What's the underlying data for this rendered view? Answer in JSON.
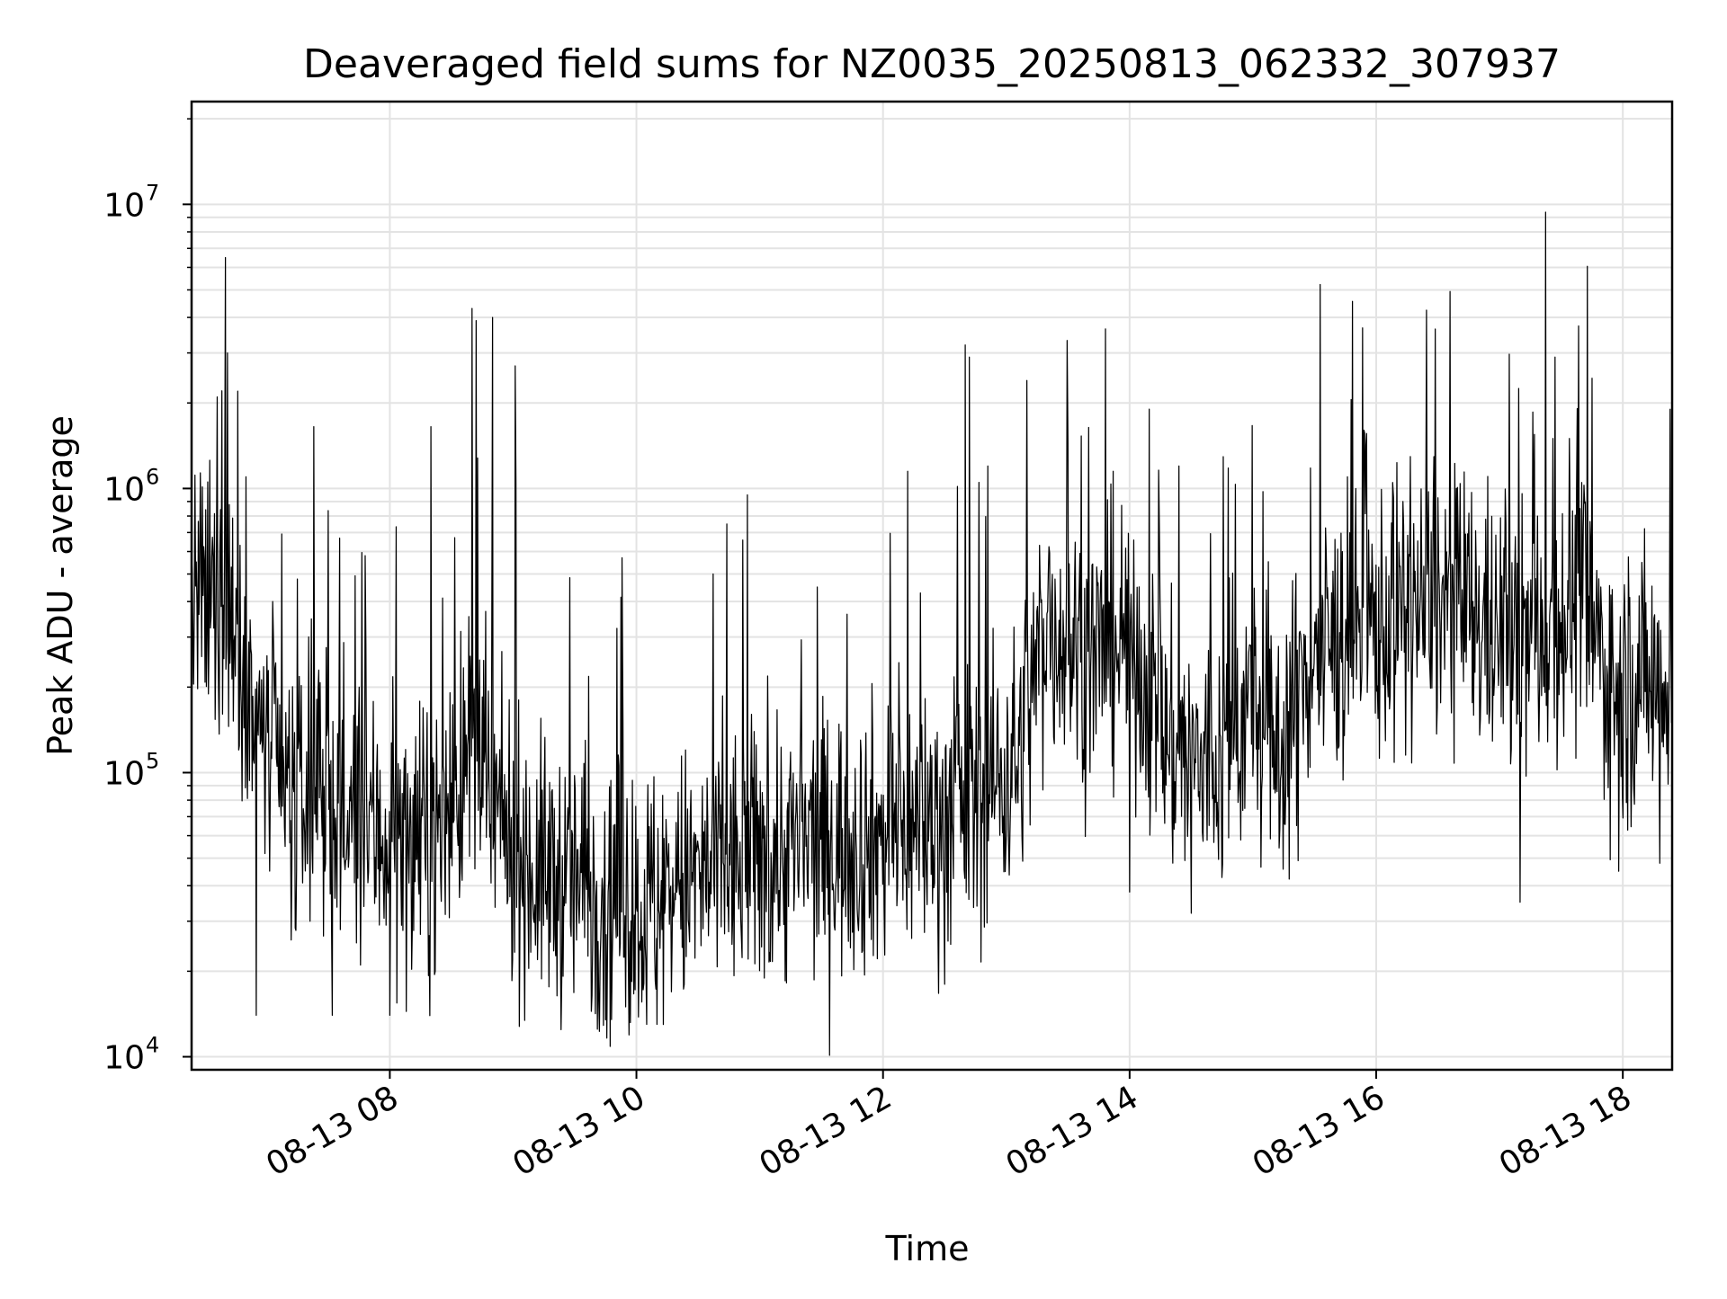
{
  "chart_data": {
    "type": "line",
    "title": "Deaveraged field sums for NZ0035_20250813_062332_307937",
    "xlabel": "Time",
    "ylabel": "Peak ADU - average",
    "x_axis": {
      "kind": "datetime",
      "min": "2025-08-13T06:23:32",
      "max": "2025-08-13T18:24:00",
      "ticks": [
        "2025-08-13T08:00",
        "2025-08-13T10:00",
        "2025-08-13T12:00",
        "2025-08-13T14:00",
        "2025-08-13T16:00",
        "2025-08-13T18:00"
      ],
      "tick_labels": [
        "08-13 08",
        "08-13 10",
        "08-13 12",
        "08-13 14",
        "08-13 16",
        "08-13 18"
      ],
      "tick_label_rotation_deg": 30
    },
    "y_axis": {
      "scale": "log",
      "ylim": [
        9000,
        23000000
      ],
      "ticks": [
        10000,
        100000,
        1000000,
        10000000
      ],
      "tick_labels": [
        {
          "base": "10",
          "exp": "4"
        },
        {
          "base": "10",
          "exp": "5"
        },
        {
          "base": "10",
          "exp": "6"
        },
        {
          "base": "10",
          "exp": "7"
        }
      ]
    },
    "grid": true,
    "legend": "none",
    "series": [
      {
        "color": "#000000",
        "x_start": "2025-08-13T06:23:32",
        "x_end": "2025-08-13T18:24:00",
        "level_profile": [
          [
            "2025-08-13T06:23:32",
            400000
          ],
          [
            "2025-08-13T06:45",
            350000
          ],
          [
            "2025-08-13T06:55",
            150000
          ],
          [
            "2025-08-13T07:10",
            80000
          ],
          [
            "2025-08-13T07:40",
            65000
          ],
          [
            "2025-08-13T08:20",
            55000
          ],
          [
            "2025-08-13T08:40",
            120000
          ],
          [
            "2025-08-13T08:50",
            70000
          ],
          [
            "2025-08-13T09:10",
            45000
          ],
          [
            "2025-08-13T10:00",
            35000
          ],
          [
            "2025-08-13T10:40",
            45000
          ],
          [
            "2025-08-13T11:20",
            55000
          ],
          [
            "2025-08-13T12:00",
            60000
          ],
          [
            "2025-08-13T12:40",
            75000
          ],
          [
            "2025-08-13T13:05",
            110000
          ],
          [
            "2025-08-13T13:20",
            350000
          ],
          [
            "2025-08-13T13:40",
            250000
          ],
          [
            "2025-08-13T14:00",
            300000
          ],
          [
            "2025-08-13T14:20",
            120000
          ],
          [
            "2025-08-13T14:40",
            100000
          ],
          [
            "2025-08-13T15:00",
            180000
          ],
          [
            "2025-08-13T15:10",
            110000
          ],
          [
            "2025-08-13T15:30",
            260000
          ],
          [
            "2025-08-13T16:00",
            330000
          ],
          [
            "2025-08-13T16:30",
            400000
          ],
          [
            "2025-08-13T17:10",
            280000
          ],
          [
            "2025-08-13T17:40",
            400000
          ],
          [
            "2025-08-13T17:55",
            200000
          ],
          [
            "2025-08-13T18:24",
            220000
          ]
        ],
        "spikes": [
          [
            "2025-08-13T06:40",
            6500000
          ],
          [
            "2025-08-13T06:41",
            3000000
          ],
          [
            "2025-08-13T06:36",
            2100000
          ],
          [
            "2025-08-13T06:46",
            2200000
          ],
          [
            "2025-08-13T06:50",
            1100000
          ],
          [
            "2025-08-13T07:03",
            400000
          ],
          [
            "2025-08-13T07:15",
            480000
          ],
          [
            "2025-08-13T07:23",
            1650000
          ],
          [
            "2025-08-13T07:48",
            580000
          ],
          [
            "2025-08-13T08:20",
            1650000
          ],
          [
            "2025-08-13T08:40",
            4300000
          ],
          [
            "2025-08-13T08:42",
            3900000
          ],
          [
            "2025-08-13T08:50",
            4000000
          ],
          [
            "2025-08-13T09:01",
            2700000
          ],
          [
            "2025-08-13T09:53",
            570000
          ],
          [
            "2025-08-13T10:44",
            750000
          ],
          [
            "2025-08-13T10:54",
            950000
          ],
          [
            "2025-08-13T11:28",
            450000
          ],
          [
            "2025-08-13T12:12",
            1150000
          ],
          [
            "2025-08-13T12:40",
            3200000
          ],
          [
            "2025-08-13T12:42",
            2900000
          ],
          [
            "2025-08-13T12:51",
            1200000
          ],
          [
            "2025-08-13T13:10",
            2400000
          ],
          [
            "2025-08-13T13:30",
            1450000
          ],
          [
            "2025-08-13T13:52",
            1150000
          ],
          [
            "2025-08-13T14:24",
            1200000
          ],
          [
            "2025-08-13T14:48",
            1180000
          ],
          [
            "2025-08-13T15:28",
            1180000
          ],
          [
            "2025-08-13T15:46",
            1100000
          ],
          [
            "2025-08-13T16:08",
            1050000
          ],
          [
            "2025-08-13T16:39",
            1000000
          ],
          [
            "2025-08-13T17:17",
            1550000
          ],
          [
            "2025-08-13T17:26",
            1500000
          ],
          [
            "2025-08-13T17:34",
            1500000
          ],
          [
            "2025-08-13T17:40",
            1050000
          ],
          [
            "2025-08-13T18:23",
            1900000
          ]
        ],
        "dips": [
          [
            "2025-08-13T06:55",
            14000
          ],
          [
            "2025-08-13T07:32",
            14000
          ],
          [
            "2025-08-13T08:00",
            14000
          ],
          [
            "2025-08-13T09:45",
            13500
          ],
          [
            "2025-08-13T10:05",
            13000
          ],
          [
            "2025-08-13T10:10",
            13000
          ],
          [
            "2025-08-13T12:30",
            18000
          ],
          [
            "2025-08-13T14:00",
            38000
          ],
          [
            "2025-08-13T14:30",
            32000
          ],
          [
            "2025-08-13T15:22",
            49000
          ],
          [
            "2025-08-13T17:10",
            35000
          ],
          [
            "2025-08-13T17:58",
            45000
          ],
          [
            "2025-08-13T18:18",
            48000
          ]
        ]
      }
    ]
  }
}
